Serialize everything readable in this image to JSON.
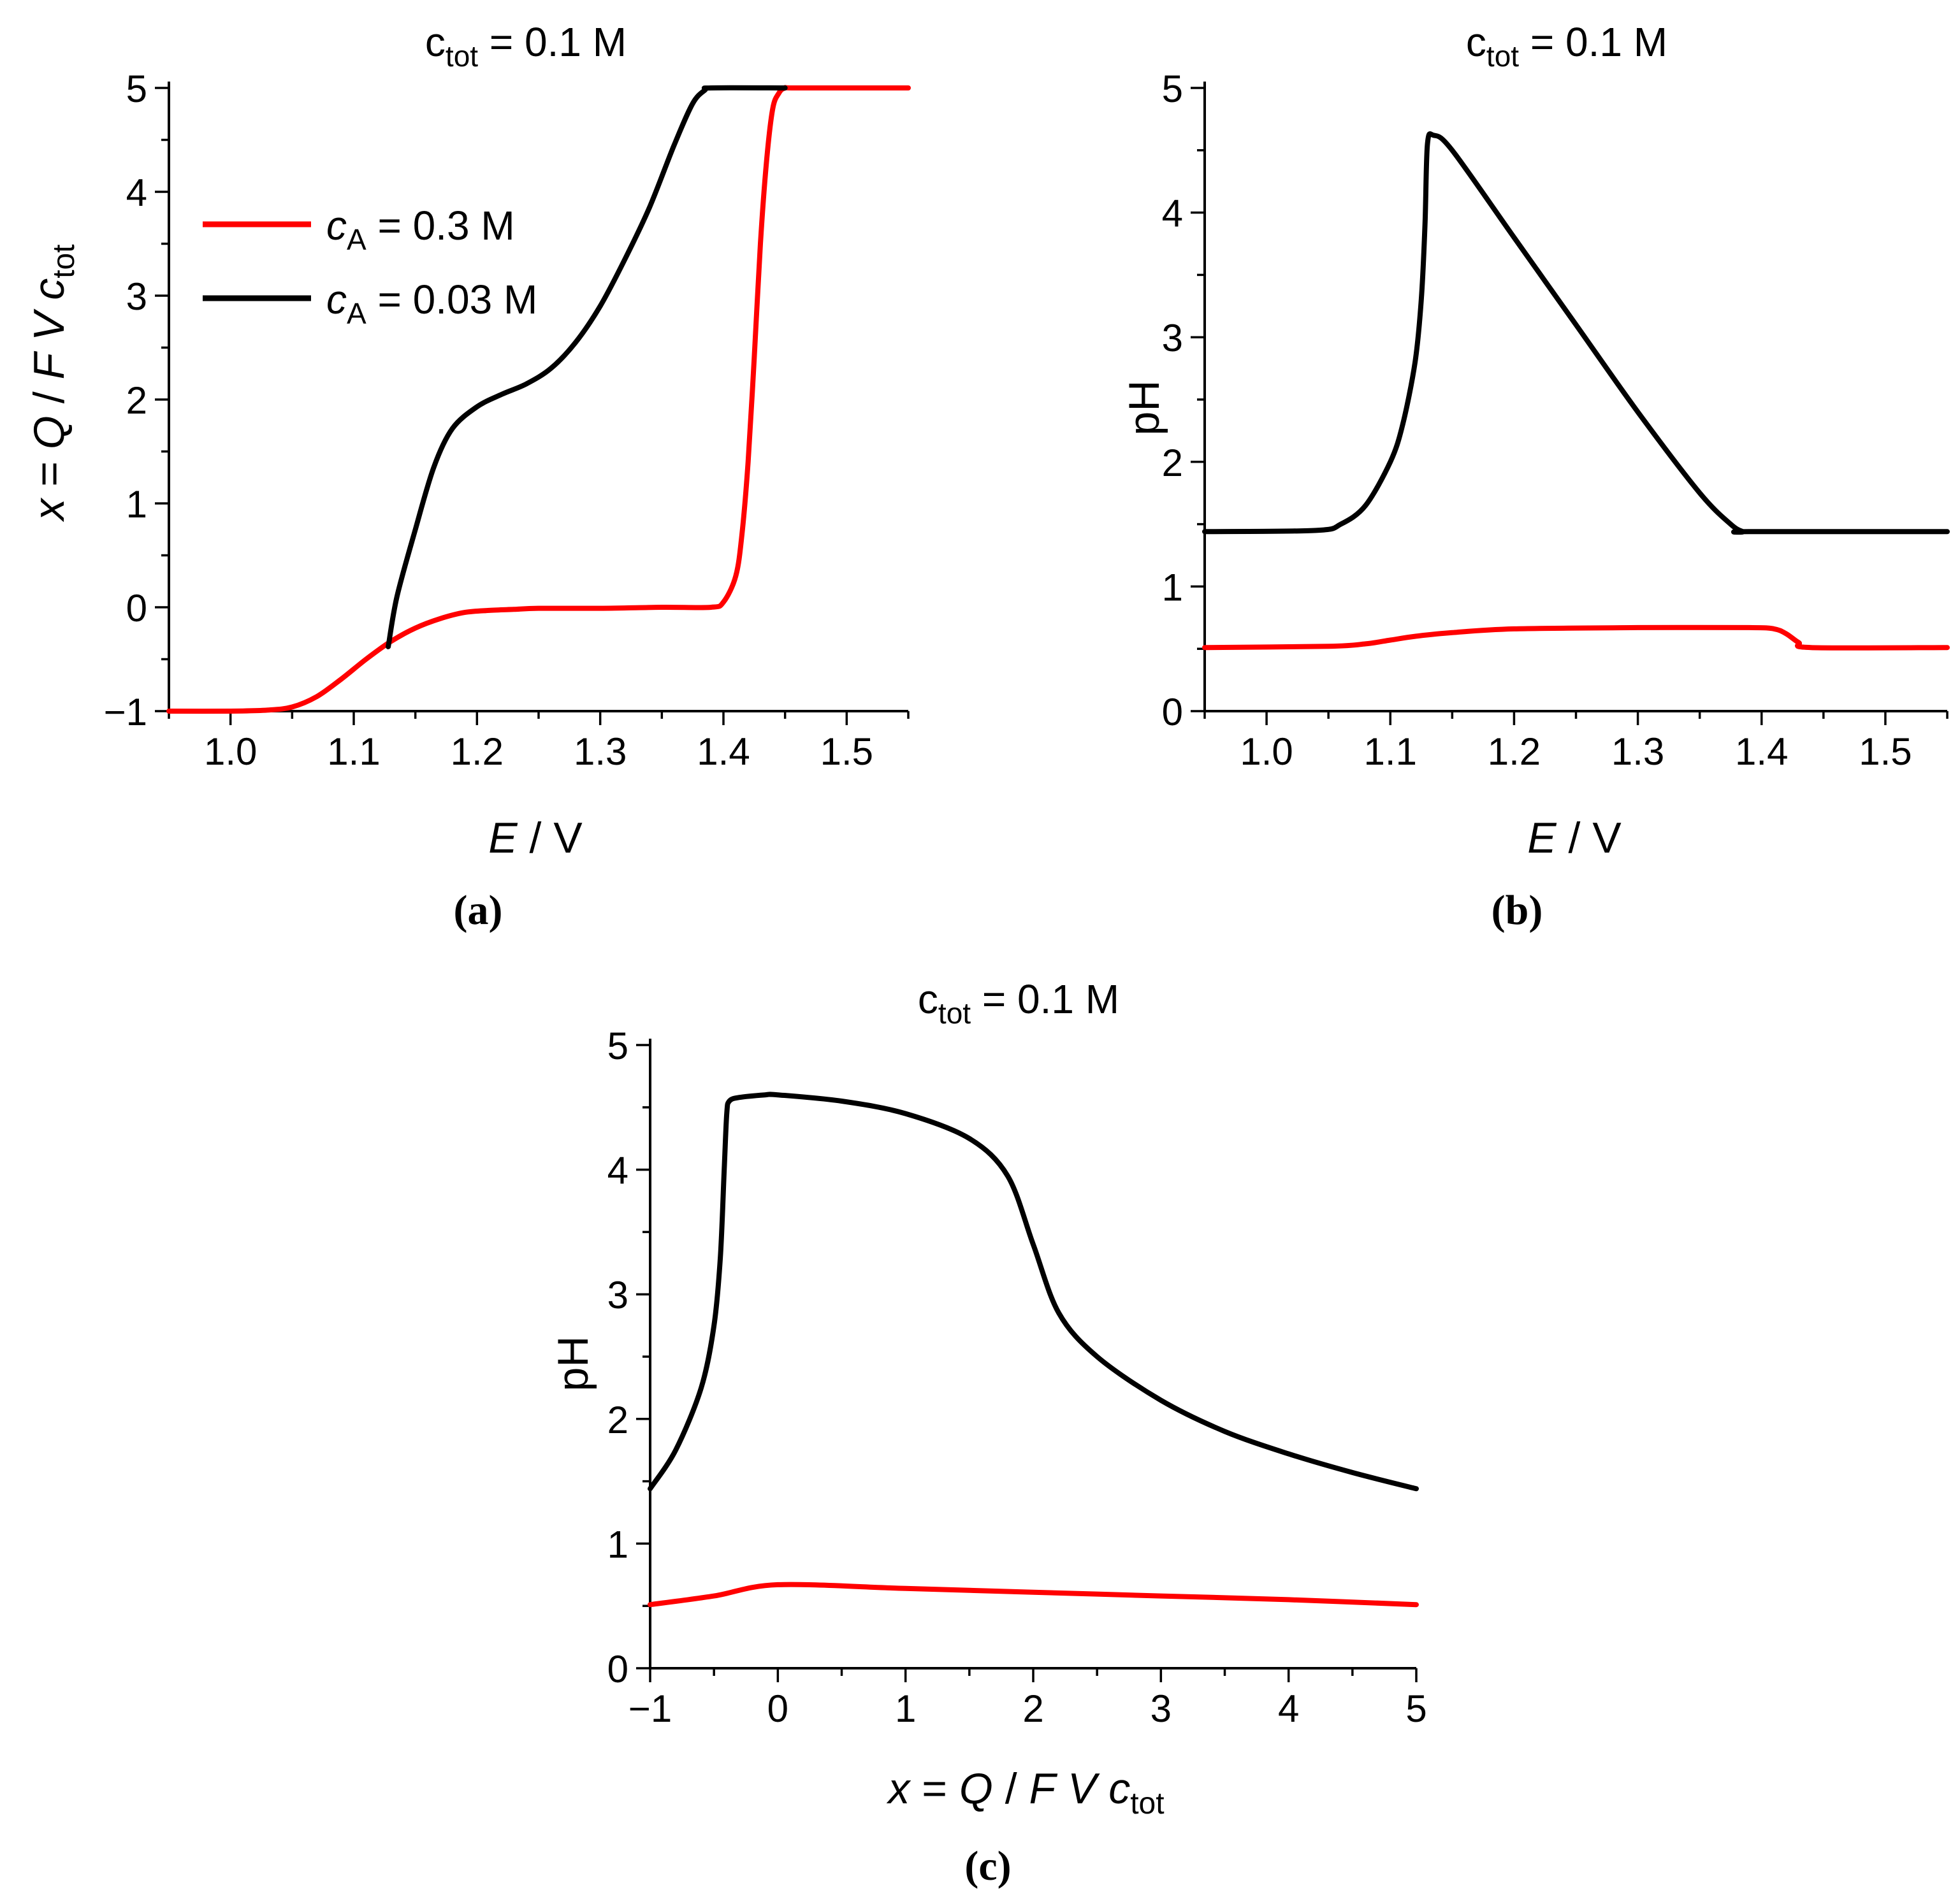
{
  "figure": {
    "panels": [
      "a",
      "b",
      "c"
    ],
    "captions": {
      "a": "(a)",
      "b": "(b)",
      "c": "(c)"
    },
    "colors": {
      "red": "#ff0000",
      "black": "#000000"
    }
  },
  "chart_data": [
    {
      "id": "a",
      "type": "line",
      "title": {
        "main": "c",
        "sub": "tot",
        "rest": " = 0.1 M"
      },
      "xlabel": {
        "italic": "E",
        "rest": " / V"
      },
      "ylabel": {
        "italic1": "x",
        "mid1": " = ",
        "italic2": "Q",
        "mid2": " / ",
        "italic3": "F",
        "mid3": " ",
        "italic4": "V",
        "mid4": " ",
        "italic5": "c",
        "sub": "tot"
      },
      "xlim": [
        0.95,
        1.55
      ],
      "ylim": [
        -1,
        5
      ],
      "xticks": [
        1.0,
        1.1,
        1.2,
        1.3,
        1.4,
        1.5
      ],
      "xtick_labels": [
        "1.0",
        "1.1",
        "1.2",
        "1.3",
        "1.4",
        "1.5"
      ],
      "yticks": [
        -1,
        0,
        1,
        2,
        3,
        4,
        5
      ],
      "ytick_labels": [
        "−1",
        "0",
        "1",
        "2",
        "3",
        "4",
        "5"
      ],
      "legend": {
        "position": "upper-left",
        "entries": [
          {
            "italic": "c",
            "sub": "A",
            "rest": " = 0.3 M",
            "color": "#ff0000"
          },
          {
            "italic": "c",
            "sub": "A",
            "rest": " = 0.03 M",
            "color": "#000000"
          }
        ]
      },
      "series": [
        {
          "name": "cA = 0.3 M",
          "color": "#ff0000",
          "x": [
            0.95,
            1.0,
            1.03,
            1.05,
            1.07,
            1.09,
            1.11,
            1.13,
            1.15,
            1.17,
            1.19,
            1.21,
            1.23,
            1.25,
            1.3,
            1.35,
            1.39,
            1.4,
            1.41,
            1.415,
            1.42,
            1.425,
            1.43,
            1.435,
            1.44,
            1.445,
            1.45,
            1.46,
            1.55
          ],
          "y": [
            -1.0,
            -1.0,
            -0.99,
            -0.96,
            -0.86,
            -0.69,
            -0.5,
            -0.33,
            -0.2,
            -0.11,
            -0.05,
            -0.03,
            -0.02,
            -0.01,
            -0.01,
            0.0,
            0.0,
            0.05,
            0.3,
            0.7,
            1.4,
            2.4,
            3.5,
            4.3,
            4.8,
            4.95,
            5.0,
            5.0,
            5.0
          ]
        },
        {
          "name": "cA = 0.03 M",
          "color": "#000000",
          "x": [
            1.128,
            1.135,
            1.15,
            1.165,
            1.18,
            1.2,
            1.22,
            1.24,
            1.26,
            1.28,
            1.3,
            1.32,
            1.34,
            1.36,
            1.375,
            1.385,
            1.39,
            1.45
          ],
          "y": [
            -0.38,
            0.1,
            0.75,
            1.35,
            1.72,
            1.93,
            2.05,
            2.15,
            2.3,
            2.55,
            2.9,
            3.35,
            3.85,
            4.45,
            4.85,
            4.98,
            5.0,
            5.0
          ]
        }
      ]
    },
    {
      "id": "b",
      "type": "line",
      "title": {
        "main": "c",
        "sub": "tot",
        "rest": " = 0.1 M"
      },
      "xlabel": {
        "italic": "E",
        "rest": " / V"
      },
      "ylabel": {
        "text": "pH"
      },
      "xlim": [
        0.95,
        1.55
      ],
      "ylim": [
        0,
        5
      ],
      "xticks": [
        1.0,
        1.1,
        1.2,
        1.3,
        1.4,
        1.5
      ],
      "xtick_labels": [
        "1.0",
        "1.1",
        "1.2",
        "1.3",
        "1.4",
        "1.5"
      ],
      "yticks": [
        0,
        1,
        2,
        3,
        4,
        5
      ],
      "ytick_labels": [
        "0",
        "1",
        "2",
        "3",
        "4",
        "5"
      ],
      "series": [
        {
          "name": "cA = 0.3 M",
          "color": "#ff0000",
          "x": [
            0.95,
            1.05,
            1.08,
            1.1,
            1.12,
            1.15,
            1.2,
            1.3,
            1.39,
            1.41,
            1.42,
            1.43,
            1.44,
            1.55
          ],
          "y": [
            0.51,
            0.52,
            0.54,
            0.57,
            0.6,
            0.63,
            0.66,
            0.67,
            0.67,
            0.66,
            0.62,
            0.55,
            0.51,
            0.51
          ]
        },
        {
          "name": "cA = 0.03 M",
          "color": "#000000",
          "x": [
            0.95,
            1.04,
            1.06,
            1.08,
            1.1,
            1.11,
            1.12,
            1.125,
            1.128,
            1.13,
            1.135,
            1.15,
            1.2,
            1.25,
            1.3,
            1.35,
            1.375,
            1.385,
            1.39,
            1.55
          ],
          "y": [
            1.44,
            1.45,
            1.5,
            1.65,
            2.0,
            2.3,
            2.8,
            3.3,
            3.9,
            4.55,
            4.62,
            4.5,
            3.8,
            3.1,
            2.4,
            1.75,
            1.5,
            1.44,
            1.44,
            1.44
          ]
        }
      ]
    },
    {
      "id": "c",
      "type": "line",
      "title": {
        "main": "c",
        "sub": "tot",
        "rest": " = 0.1 M"
      },
      "xlabel": {
        "italic1": "x",
        "mid1": " = ",
        "italic2": "Q",
        "mid2": " / ",
        "italic3": "F",
        "mid3": " ",
        "italic4": "V",
        "mid4": " ",
        "italic5": "c",
        "sub": "tot"
      },
      "ylabel": {
        "text": "pH"
      },
      "xlim": [
        -1,
        5
      ],
      "ylim": [
        0,
        5
      ],
      "xticks": [
        -1,
        0,
        1,
        2,
        3,
        4,
        5
      ],
      "xtick_labels": [
        "−1",
        "0",
        "1",
        "2",
        "3",
        "4",
        "5"
      ],
      "yticks": [
        0,
        1,
        2,
        3,
        4,
        5
      ],
      "ytick_labels": [
        "0",
        "1",
        "2",
        "3",
        "4",
        "5"
      ],
      "series": [
        {
          "name": "cA = 0.3 M",
          "color": "#ff0000",
          "x": [
            -1,
            -0.5,
            0,
            1,
            2,
            3,
            4,
            5
          ],
          "y": [
            0.51,
            0.58,
            0.67,
            0.64,
            0.61,
            0.58,
            0.55,
            0.51
          ]
        },
        {
          "name": "cA = 0.03 M",
          "color": "#000000",
          "x": [
            -1,
            -0.8,
            -0.6,
            -0.5,
            -0.45,
            -0.42,
            -0.4,
            -0.38,
            -0.3,
            -0.1,
            0,
            0.5,
            1,
            1.5,
            1.8,
            2.0,
            2.2,
            2.5,
            3,
            3.5,
            4,
            4.5,
            5
          ],
          "y": [
            1.44,
            1.75,
            2.25,
            2.75,
            3.3,
            4.0,
            4.45,
            4.55,
            4.58,
            4.6,
            4.6,
            4.55,
            4.45,
            4.25,
            3.95,
            3.4,
            2.85,
            2.5,
            2.15,
            1.9,
            1.72,
            1.57,
            1.44
          ]
        }
      ]
    }
  ]
}
